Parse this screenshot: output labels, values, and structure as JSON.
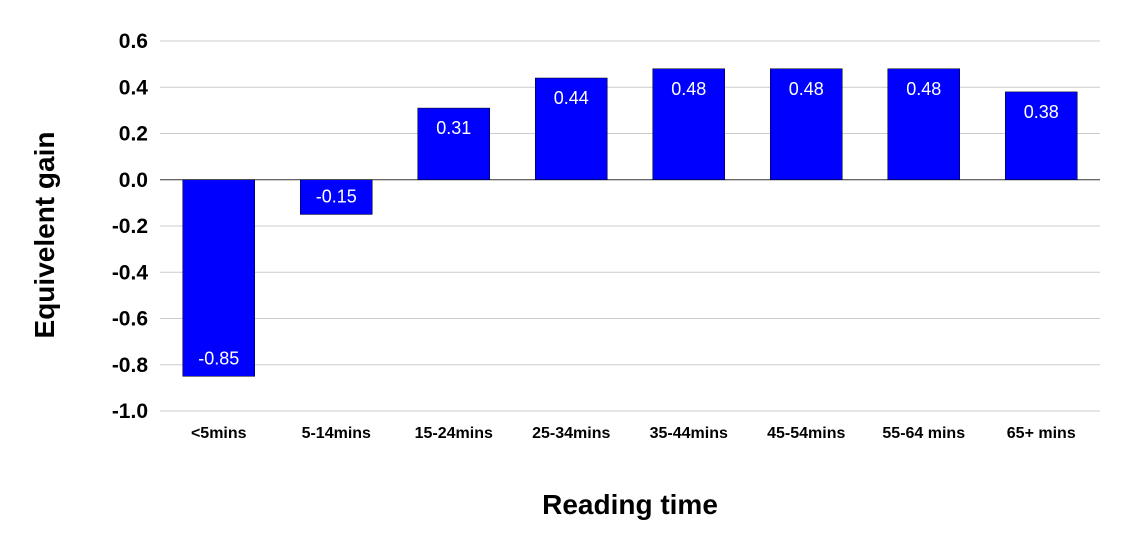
{
  "chart_data": {
    "type": "bar",
    "categories": [
      "<5mins",
      "5-14mins",
      "15-24mins",
      "25-34mins",
      "35-44mins",
      "45-54mins",
      "55-64 mins",
      "65+ mins"
    ],
    "values": [
      -0.85,
      -0.15,
      0.31,
      0.44,
      0.48,
      0.48,
      0.48,
      0.38
    ],
    "data_labels": [
      "-0.85",
      "-0.15",
      "0.31",
      "0.44",
      "0.48",
      "0.48",
      "0.48",
      "0.38"
    ],
    "xlabel": "Reading time",
    "ylabel": "Equivelent gain",
    "ylim": [
      -1.0,
      0.6
    ],
    "yticks": [
      "0.6",
      "0.4",
      "0.2",
      "0.0",
      "-0.2",
      "-0.4",
      "-0.6",
      "-0.8",
      "-1.0"
    ],
    "ytick_values": [
      0.6,
      0.4,
      0.2,
      0.0,
      -0.2,
      -0.4,
      -0.6,
      -0.8,
      -1.0
    ],
    "grid": true,
    "legend": "none",
    "colors": {
      "bar": "#0000ff"
    }
  }
}
